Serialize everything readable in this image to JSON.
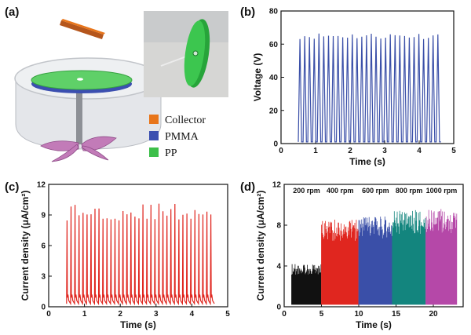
{
  "panel_a": {
    "label": "(a)",
    "legend": [
      {
        "name": "Collector",
        "color": "#E8751A"
      },
      {
        "name": "PMMA",
        "color": "#3B4FB0"
      },
      {
        "name": "PP",
        "color": "#3DBF4A"
      }
    ]
  },
  "chart_data": [
    {
      "id": "b",
      "label": "(b)",
      "type": "line",
      "xlabel": "Time (s)",
      "ylabel": "Voltage (V)",
      "xlim": [
        0,
        5
      ],
      "ylim": [
        0,
        80
      ],
      "xticks": [
        0,
        1,
        2,
        3,
        4,
        5
      ],
      "yticks": [
        0,
        20,
        40,
        60,
        80
      ],
      "series": [
        {
          "color": "#3A4FA8",
          "t_start": 0.5,
          "t_end": 4.63,
          "peaks": 30,
          "peak_value": 65,
          "baseline": 1
        }
      ]
    },
    {
      "id": "c",
      "label": "(c)",
      "type": "line",
      "xlabel": "Time (s)",
      "ylabel": "Current  density  (μA/cm²)",
      "xlim": [
        0,
        5
      ],
      "ylim": [
        0,
        12
      ],
      "xticks": [
        0,
        1,
        2,
        3,
        4,
        5
      ],
      "yticks": [
        0,
        3,
        6,
        9,
        12
      ],
      "series": [
        {
          "color": "#E0261F",
          "t_start": 0.5,
          "t_end": 4.63,
          "peaks": 37,
          "peak_value": 9.3,
          "baseline": 0.3
        }
      ]
    },
    {
      "id": "d",
      "label": "(d)",
      "type": "line",
      "xlabel": "Time (s)",
      "ylabel": "Current  density  (μA/cm²)",
      "xlim": [
        0,
        24
      ],
      "ylim": [
        0,
        12
      ],
      "xticks": [
        0,
        5,
        10,
        15,
        20
      ],
      "yticks": [
        0,
        4,
        8,
        12
      ],
      "segments": [
        {
          "label": "200 rpm",
          "t_start": 1.0,
          "t_end": 5.0,
          "color": "#111111",
          "peak_value": 4.2
        },
        {
          "label": "400 rpm",
          "t_start": 5.0,
          "t_end": 10.0,
          "color": "#E0261F",
          "peak_value": 8.6
        },
        {
          "label": "600 rpm",
          "t_start": 10.0,
          "t_end": 14.5,
          "color": "#3A4FA8",
          "peak_value": 8.9
        },
        {
          "label": "800 rpm",
          "t_start": 14.5,
          "t_end": 19.0,
          "color": "#13857E",
          "peak_value": 9.5
        },
        {
          "label": "1000 rpm",
          "t_start": 19.0,
          "t_end": 23.2,
          "color": "#B548A8",
          "peak_value": 9.6
        }
      ]
    }
  ]
}
